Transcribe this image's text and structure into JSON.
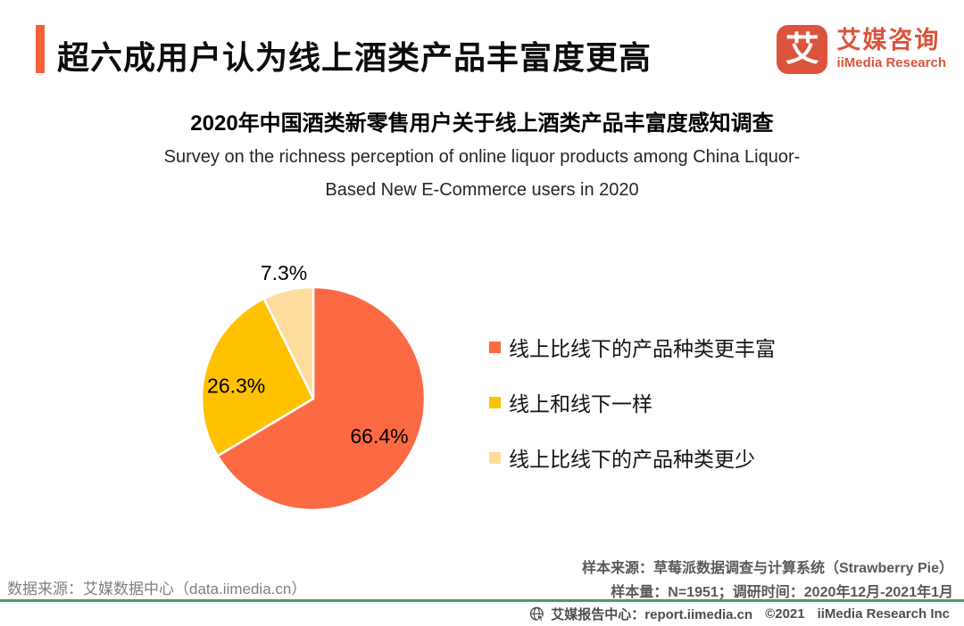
{
  "header": {
    "title": "超六成用户认为线上酒类产品丰富度更高",
    "accent_color": "#F4623C",
    "logo": {
      "icon_char": "艾",
      "name_cn": "艾媒咨询",
      "name_en": "iiMedia Research",
      "color": "#DB543B"
    }
  },
  "chart_data": {
    "type": "pie",
    "title": "2020年中国酒类新零售用户关于线上酒类产品丰富度感知调查",
    "subtitle_lines": [
      "Survey on the richness perception of online liquor products among China Liquor-",
      "Based New E-Commerce users in 2020"
    ],
    "start_angle_deg": 0,
    "direction": "clockwise",
    "legend_position": "right",
    "label_color": "#000000",
    "slices": [
      {
        "label": "线上比线下的产品种类更丰富",
        "value": 66.4,
        "display": "66.4%",
        "color": "#FB6A43"
      },
      {
        "label": "线上和线下一样",
        "value": 26.3,
        "display": "26.3%",
        "color": "#FFC100"
      },
      {
        "label": "线上比线下的产品种类更少",
        "value": 7.3,
        "display": "7.3%",
        "color": "#FEDC9C"
      }
    ]
  },
  "sources": {
    "data_source": "数据来源：艾媒数据中心（data.iimedia.cn）",
    "sample_source": "样本来源：草莓派数据调查与计算系统（Strawberry Pie）",
    "sample_info": "样本量：N=1951；调研时间：2020年12月-2021年1月"
  },
  "footer": {
    "divider_color": "#4E9D5E",
    "parts": [
      "艾媒报告中心：report.iimedia.cn",
      "©2021",
      "iiMedia Research  Inc"
    ]
  }
}
